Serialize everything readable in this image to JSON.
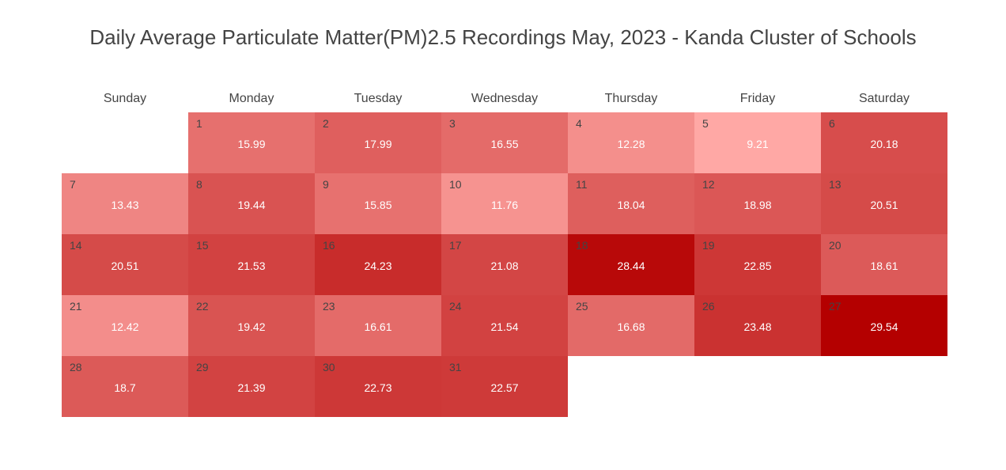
{
  "chart_data": {
    "type": "heatmap",
    "title": "Daily Average Particulate Matter(PM)2.5 Recordings May, 2023 - Kanda Cluster of Schools",
    "weekdays": [
      "Sunday",
      "Monday",
      "Tuesday",
      "Wednesday",
      "Thursday",
      "Friday",
      "Saturday"
    ],
    "month": "May, 2023",
    "first_weekday_index": 1,
    "days": [
      {
        "day": 1,
        "value": 15.99
      },
      {
        "day": 2,
        "value": 17.99
      },
      {
        "day": 3,
        "value": 16.55
      },
      {
        "day": 4,
        "value": 12.28
      },
      {
        "day": 5,
        "value": 9.21
      },
      {
        "day": 6,
        "value": 20.18
      },
      {
        "day": 7,
        "value": 13.43
      },
      {
        "day": 8,
        "value": 19.44
      },
      {
        "day": 9,
        "value": 15.85
      },
      {
        "day": 10,
        "value": 11.76
      },
      {
        "day": 11,
        "value": 18.04
      },
      {
        "day": 12,
        "value": 18.98
      },
      {
        "day": 13,
        "value": 20.51
      },
      {
        "day": 14,
        "value": 20.51
      },
      {
        "day": 15,
        "value": 21.53
      },
      {
        "day": 16,
        "value": 24.23
      },
      {
        "day": 17,
        "value": 21.08
      },
      {
        "day": 18,
        "value": 28.44
      },
      {
        "day": 19,
        "value": 22.85
      },
      {
        "day": 20,
        "value": 18.61
      },
      {
        "day": 21,
        "value": 12.42
      },
      {
        "day": 22,
        "value": 19.42
      },
      {
        "day": 23,
        "value": 16.61
      },
      {
        "day": 24,
        "value": 21.54
      },
      {
        "day": 25,
        "value": 16.68
      },
      {
        "day": 26,
        "value": 23.48
      },
      {
        "day": 27,
        "value": 29.54
      },
      {
        "day": 28,
        "value": 18.7
      },
      {
        "day": 29,
        "value": 21.39
      },
      {
        "day": 30,
        "value": 22.73
      },
      {
        "day": 31,
        "value": 22.57
      }
    ],
    "value_range": [
      9.21,
      29.54
    ],
    "color_scale": {
      "low": "#ffa8a5",
      "high": "#b40000"
    },
    "grid": false
  }
}
